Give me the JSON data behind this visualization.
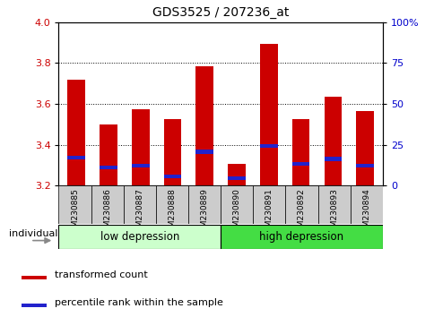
{
  "title": "GDS3525 / 207236_at",
  "samples": [
    "GSM230885",
    "GSM230886",
    "GSM230887",
    "GSM230888",
    "GSM230889",
    "GSM230890",
    "GSM230891",
    "GSM230892",
    "GSM230893",
    "GSM230894"
  ],
  "red_values": [
    3.72,
    3.5,
    3.575,
    3.525,
    3.785,
    3.305,
    3.895,
    3.525,
    3.635,
    3.565
  ],
  "blue_values": [
    3.335,
    3.29,
    3.295,
    3.245,
    3.365,
    3.235,
    3.395,
    3.305,
    3.33,
    3.295
  ],
  "bar_base": 3.2,
  "ylim": [
    3.2,
    4.0
  ],
  "yticks_left": [
    3.2,
    3.4,
    3.6,
    3.8,
    4.0
  ],
  "yticks_right": [
    0,
    25,
    50,
    75,
    100
  ],
  "ytick_labels_right": [
    "0",
    "25",
    "50",
    "75",
    "100%"
  ],
  "group_low_label": "low depression",
  "group_high_label": "high depression",
  "group_low_color": "#ccffcc",
  "group_high_color": "#44dd44",
  "legend_items": [
    {
      "label": "transformed count",
      "color": "#cc0000"
    },
    {
      "label": "percentile rank within the sample",
      "color": "#2222cc"
    }
  ],
  "individual_label": "individual",
  "bar_width": 0.55,
  "red_color": "#cc0000",
  "blue_color": "#2222cc",
  "tick_label_color_left": "#cc0000",
  "tick_label_color_right": "#0000cc",
  "grey_box_color": "#cccccc",
  "plot_bg": "#ffffff"
}
